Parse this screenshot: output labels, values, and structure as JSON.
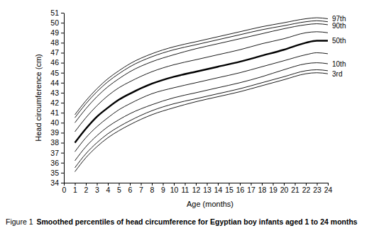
{
  "chart_data": {
    "type": "line",
    "figure_label": "Figure 1",
    "title": "Smoothed percentiles of head circumference for Egyptian boy infants aged 1 to 24 months",
    "x_label": "Age (months)",
    "y_label": "Head circumference (cm)",
    "x": [
      1,
      2,
      3,
      4,
      5,
      6,
      8,
      10,
      12,
      14,
      16,
      18,
      20,
      22,
      23,
      24
    ],
    "series": [
      {
        "name": "97th",
        "color": "#000000",
        "line_style": "solid",
        "values": [
          40.8,
          42.2,
          43.4,
          44.4,
          45.2,
          45.9,
          46.9,
          47.6,
          48.1,
          48.6,
          49.1,
          49.6,
          50.0,
          50.4,
          50.5,
          50.4
        ]
      },
      {
        "color": "#000000",
        "line_style": "solid",
        "values": [
          40.5,
          41.9,
          43.1,
          44.1,
          44.9,
          45.6,
          46.6,
          47.3,
          47.8,
          48.3,
          48.8,
          49.3,
          49.7,
          50.1,
          50.2,
          50.1
        ]
      },
      {
        "name": "90th",
        "color": "#000000",
        "line_style": "solid",
        "values": [
          40.0,
          41.4,
          42.6,
          43.6,
          44.4,
          45.1,
          46.1,
          46.8,
          47.4,
          47.9,
          48.4,
          48.9,
          49.4,
          49.8,
          49.9,
          49.8
        ]
      },
      {
        "color": "#000000",
        "line_style": "solid",
        "values": [
          39.1,
          40.5,
          41.7,
          42.7,
          43.5,
          44.1,
          45.1,
          45.8,
          46.3,
          46.8,
          47.3,
          47.9,
          48.4,
          49.0,
          49.1,
          49.0
        ]
      },
      {
        "name": "50th",
        "color": "#000000",
        "line_style": "thick",
        "values": [
          38.0,
          39.4,
          40.6,
          41.5,
          42.3,
          42.9,
          43.9,
          44.6,
          45.1,
          45.6,
          46.1,
          46.7,
          47.3,
          48.0,
          48.2,
          48.2
        ]
      },
      {
        "color": "#000000",
        "line_style": "solid",
        "values": [
          37.1,
          38.5,
          39.6,
          40.5,
          41.3,
          41.9,
          42.9,
          43.5,
          44.0,
          44.5,
          45.0,
          45.6,
          46.2,
          46.8,
          47.0,
          46.9
        ]
      },
      {
        "name": "10th",
        "color": "#000000",
        "line_style": "solid",
        "values": [
          36.2,
          37.6,
          38.7,
          39.6,
          40.3,
          40.9,
          41.8,
          42.5,
          43.0,
          43.5,
          44.0,
          44.6,
          45.3,
          45.9,
          46.0,
          45.9
        ]
      },
      {
        "color": "#000000",
        "line_style": "solid",
        "values": [
          35.5,
          36.9,
          38.0,
          38.9,
          39.6,
          40.2,
          41.2,
          41.9,
          42.4,
          42.9,
          43.4,
          44.0,
          44.6,
          45.2,
          45.3,
          45.2
        ]
      },
      {
        "name": "3rd",
        "color": "#000000",
        "line_style": "solid",
        "values": [
          35.1,
          36.5,
          37.6,
          38.5,
          39.2,
          39.8,
          40.8,
          41.5,
          42.1,
          42.6,
          43.1,
          43.7,
          44.3,
          44.9,
          45.0,
          44.9
        ]
      }
    ],
    "xlim": [
      0,
      24
    ],
    "xticks": [
      0,
      1,
      2,
      3,
      4,
      5,
      6,
      7,
      8,
      9,
      10,
      11,
      12,
      13,
      14,
      15,
      16,
      17,
      18,
      19,
      20,
      21,
      22,
      23,
      24
    ],
    "ylim": [
      34,
      51
    ],
    "yticks": [
      34,
      35,
      36,
      37,
      38,
      39,
      40,
      41,
      42,
      43,
      44,
      45,
      46,
      47,
      48,
      49,
      50,
      51
    ],
    "grid": false,
    "tick_labels": true
  }
}
